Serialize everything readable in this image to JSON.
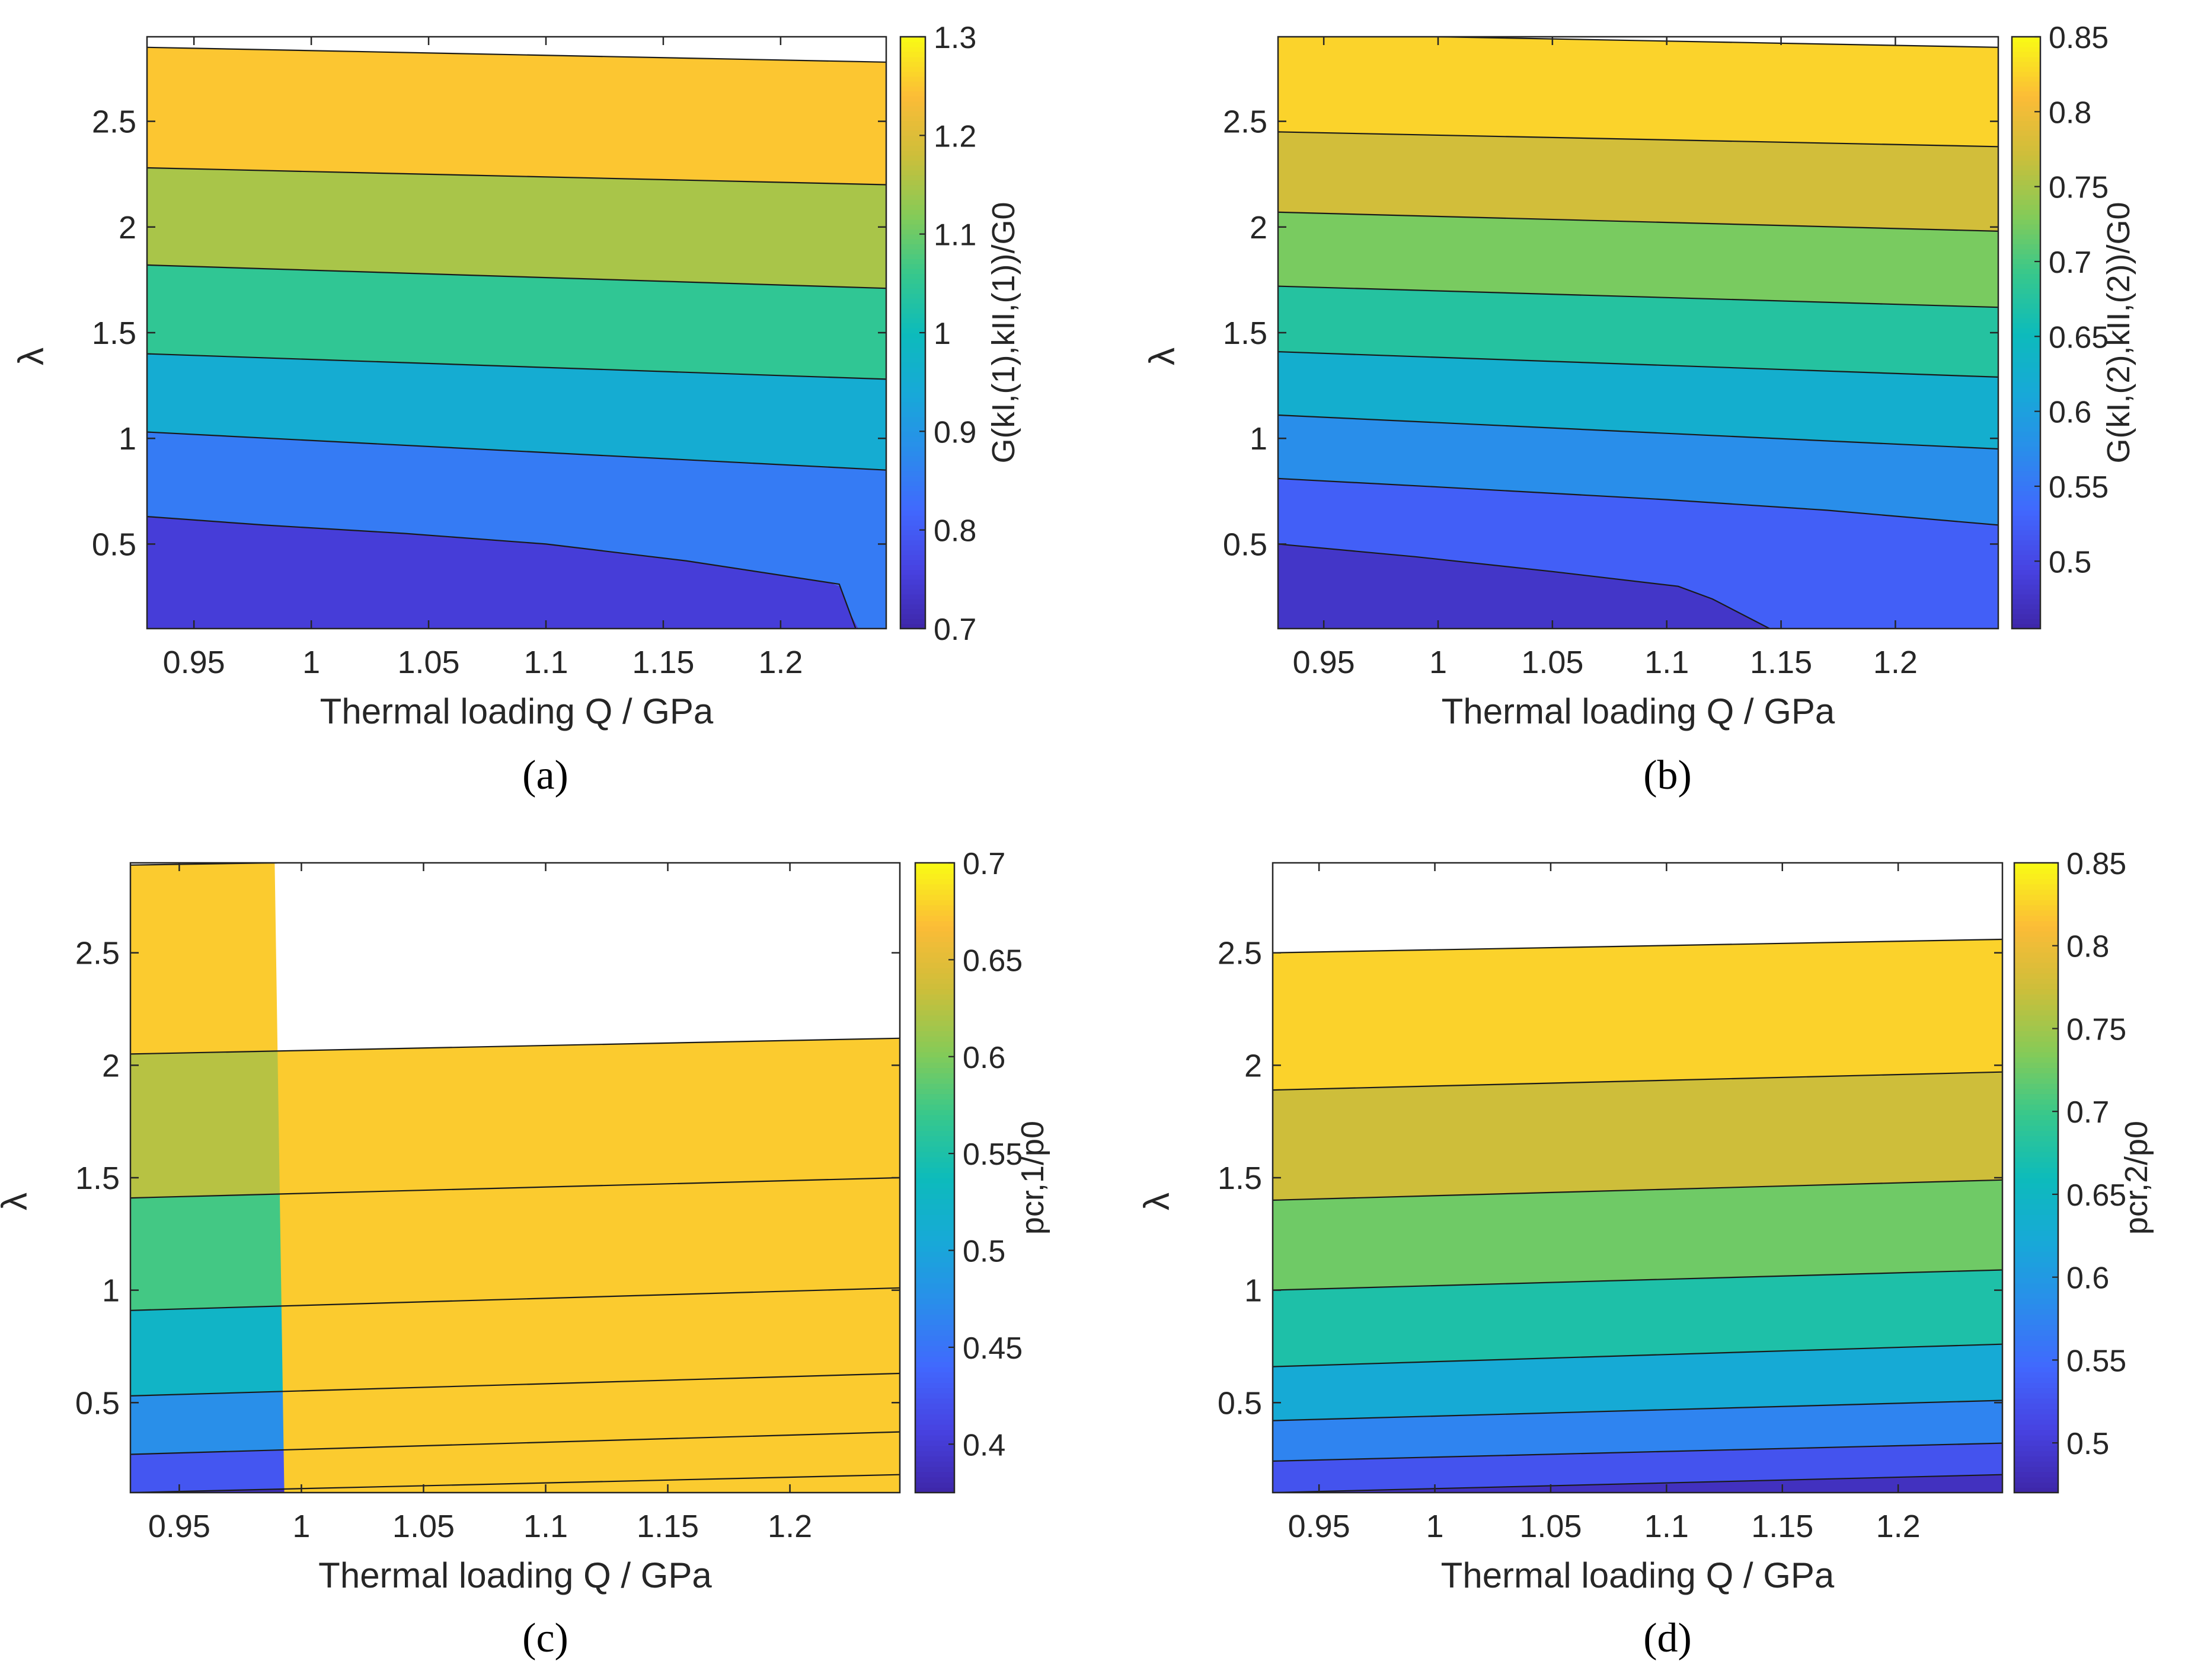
{
  "figure_title": "",
  "chart_data": [
    {
      "type": "contour",
      "panel_label": "(a)",
      "panel_letter": "a",
      "xlabel": "Thermal loading Q / GPa",
      "ylabel": "λ",
      "colorbar_label": "G(kI,(1),kII,(1))/G0",
      "xlim": [
        0.93,
        1.245
      ],
      "ylim": [
        0.1,
        2.9
      ],
      "xticks": [
        0.95,
        1,
        1.05,
        1.1,
        1.15,
        1.2
      ],
      "xtick_labels": [
        "0.95",
        "1",
        "1.05",
        "1.1",
        "1.15",
        "1.2"
      ],
      "yticks": [
        0.5,
        1,
        1.5,
        2,
        2.5
      ],
      "ytick_labels": [
        "0.5",
        "1",
        "1.5",
        "2",
        "2.5"
      ],
      "clim": [
        0.7,
        1.3
      ],
      "cticks": [
        0.7,
        0.8,
        0.9,
        1,
        1.1,
        1.2,
        1.3
      ],
      "ctick_labels": [
        "0.7",
        "0.8",
        "0.9",
        "1",
        "1.1",
        "1.2",
        "1.3"
      ],
      "contour_levels": [
        0.7,
        0.8,
        0.9,
        1.0,
        1.1,
        1.2,
        1.3
      ],
      "contour_lines": [
        {
          "level": 0.8,
          "x": [
            0.93,
            0.98,
            1.04,
            1.1,
            1.16,
            1.225,
            1.232
          ],
          "y": [
            0.63,
            0.59,
            0.55,
            0.5,
            0.42,
            0.31,
            0.1
          ]
        },
        {
          "level": 0.9,
          "x": [
            0.93,
            1.245
          ],
          "y": [
            1.03,
            0.85
          ]
        },
        {
          "level": 1.0,
          "x": [
            0.93,
            1.245
          ],
          "y": [
            1.4,
            1.28
          ]
        },
        {
          "level": 1.1,
          "x": [
            0.93,
            1.245
          ],
          "y": [
            1.82,
            1.71
          ]
        },
        {
          "level": 1.2,
          "x": [
            0.93,
            1.245
          ],
          "y": [
            2.28,
            2.2
          ]
        },
        {
          "level": 1.3,
          "x": [
            0.93,
            1.245
          ],
          "y": [
            2.85,
            2.78
          ]
        }
      ]
    },
    {
      "type": "contour",
      "panel_label": "(b)",
      "panel_letter": "b",
      "xlabel": "Thermal loading Q / GPa",
      "ylabel": "λ",
      "colorbar_label": "G(kI,(2),kII,(2))/G0",
      "xlim": [
        0.93,
        1.245
      ],
      "ylim": [
        0.1,
        2.9
      ],
      "xticks": [
        0.95,
        1,
        1.05,
        1.1,
        1.15,
        1.2
      ],
      "xtick_labels": [
        "0.95",
        "1",
        "1.05",
        "1.1",
        "1.15",
        "1.2"
      ],
      "yticks": [
        0.5,
        1,
        1.5,
        2,
        2.5
      ],
      "ytick_labels": [
        "0.5",
        "1",
        "1.5",
        "2",
        "2.5"
      ],
      "clim": [
        0.455,
        0.85
      ],
      "cticks": [
        0.5,
        0.55,
        0.6,
        0.65,
        0.7,
        0.75,
        0.8,
        0.85
      ],
      "ctick_labels": [
        "0.5",
        "0.55",
        "0.6",
        "0.65",
        "0.7",
        "0.75",
        "0.8",
        "0.85"
      ],
      "contour_levels": [
        0.455,
        0.5,
        0.55,
        0.6,
        0.65,
        0.7,
        0.75,
        0.8,
        0.85
      ],
      "contour_lines": [
        {
          "level": 0.5,
          "x": [
            0.93,
            0.99,
            1.05,
            1.105,
            1.12,
            1.145
          ],
          "y": [
            0.5,
            0.44,
            0.37,
            0.3,
            0.24,
            0.1
          ]
        },
        {
          "level": 0.55,
          "x": [
            0.93,
            1.0,
            1.1,
            1.17,
            1.245
          ],
          "y": [
            0.81,
            0.77,
            0.71,
            0.66,
            0.59
          ]
        },
        {
          "level": 0.6,
          "x": [
            0.93,
            1.245
          ],
          "y": [
            1.11,
            0.95
          ]
        },
        {
          "level": 0.65,
          "x": [
            0.93,
            1.245
          ],
          "y": [
            1.41,
            1.29
          ]
        },
        {
          "level": 0.7,
          "x": [
            0.93,
            1.245
          ],
          "y": [
            1.72,
            1.62
          ]
        },
        {
          "level": 0.75,
          "x": [
            0.93,
            1.245
          ],
          "y": [
            2.07,
            1.98
          ]
        },
        {
          "level": 0.8,
          "x": [
            0.93,
            1.245
          ],
          "y": [
            2.45,
            2.38
          ]
        },
        {
          "level": 0.85,
          "x": [
            1.0,
            1.245
          ],
          "y": [
            2.9,
            2.85
          ]
        }
      ]
    },
    {
      "type": "contour",
      "panel_label": "(c)",
      "panel_letter": "c",
      "xlabel": "Thermal loading Q / GPa",
      "ylabel": "λ",
      "colorbar_label": "pcr,1/p0",
      "xlim": [
        0.93,
        1.245
      ],
      "ylim": [
        0.1,
        2.9
      ],
      "xticks": [
        0.95,
        1,
        1.05,
        1.1,
        1.15,
        1.2
      ],
      "xtick_labels": [
        "0.95",
        "1",
        "1.05",
        "1.1",
        "1.15",
        "1.2"
      ],
      "yticks": [
        0.5,
        1,
        1.5,
        2,
        2.5
      ],
      "ytick_labels": [
        "0.5",
        "1",
        "1.5",
        "2",
        "2.5"
      ],
      "clim": [
        0.375,
        0.7
      ],
      "cticks": [
        0.4,
        0.45,
        0.5,
        0.55,
        0.6,
        0.65,
        0.7
      ],
      "ctick_labels": [
        "0.4",
        "0.45",
        "0.5",
        "0.55",
        "0.6",
        "0.65",
        "0.7"
      ],
      "contour_levels": [
        0.375,
        0.4,
        0.45,
        0.5,
        0.55,
        0.6,
        0.65,
        0.7
      ],
      "contour_lines": [
        {
          "level": 0.4,
          "x": [
            0.93,
            1.245
          ],
          "y": [
            0.1,
            0.18
          ]
        },
        {
          "level": 0.45,
          "x": [
            0.93,
            1.245
          ],
          "y": [
            0.27,
            0.37
          ]
        },
        {
          "level": 0.5,
          "x": [
            0.93,
            1.245
          ],
          "y": [
            0.53,
            0.63
          ]
        },
        {
          "level": 0.55,
          "x": [
            0.93,
            1.245
          ],
          "y": [
            0.91,
            1.01
          ]
        },
        {
          "level": 0.6,
          "x": [
            0.93,
            1.245
          ],
          "y": [
            1.41,
            1.5
          ]
        },
        {
          "level": 0.65,
          "x": [
            0.93,
            1.245
          ],
          "y": [
            2.05,
            2.12
          ]
        },
        {
          "level": 0.7,
          "x": [
            0.93,
            0.99
          ],
          "y": [
            2.89,
            2.9
          ]
        }
      ]
    },
    {
      "type": "contour",
      "panel_label": "(d)",
      "panel_letter": "d",
      "xlabel": "Thermal loading Q / GPa",
      "ylabel": "λ",
      "colorbar_label": "pcr,2/p0",
      "xlim": [
        0.93,
        1.245
      ],
      "ylim": [
        0.1,
        2.9
      ],
      "xticks": [
        0.95,
        1,
        1.05,
        1.1,
        1.15,
        1.2
      ],
      "xtick_labels": [
        "0.95",
        "1",
        "1.05",
        "1.1",
        "1.15",
        "1.2"
      ],
      "yticks": [
        0.5,
        1,
        1.5,
        2,
        2.5
      ],
      "ytick_labels": [
        "0.5",
        "1",
        "1.5",
        "2",
        "2.5"
      ],
      "clim": [
        0.47,
        0.85
      ],
      "cticks": [
        0.5,
        0.55,
        0.6,
        0.65,
        0.7,
        0.75,
        0.8,
        0.85
      ],
      "ctick_labels": [
        "0.5",
        "0.55",
        "0.6",
        "0.65",
        "0.7",
        "0.75",
        "0.8",
        "0.85"
      ],
      "contour_levels": [
        0.47,
        0.5,
        0.55,
        0.6,
        0.65,
        0.7,
        0.75,
        0.8,
        0.85
      ],
      "contour_lines": [
        {
          "level": 0.5,
          "x": [
            0.93,
            1.245
          ],
          "y": [
            0.1,
            0.18
          ]
        },
        {
          "level": 0.55,
          "x": [
            0.93,
            1.245
          ],
          "y": [
            0.24,
            0.32
          ]
        },
        {
          "level": 0.6,
          "x": [
            0.93,
            1.245
          ],
          "y": [
            0.42,
            0.51
          ]
        },
        {
          "level": 0.65,
          "x": [
            0.93,
            1.245
          ],
          "y": [
            0.66,
            0.76
          ]
        },
        {
          "level": 0.7,
          "x": [
            0.93,
            1.245
          ],
          "y": [
            1.0,
            1.09
          ]
        },
        {
          "level": 0.75,
          "x": [
            0.93,
            1.245
          ],
          "y": [
            1.4,
            1.49
          ]
        },
        {
          "level": 0.8,
          "x": [
            0.93,
            1.245
          ],
          "y": [
            1.89,
            1.97
          ]
        },
        {
          "level": 0.85,
          "x": [
            0.93,
            1.245
          ],
          "y": [
            2.5,
            2.56
          ]
        }
      ]
    }
  ]
}
